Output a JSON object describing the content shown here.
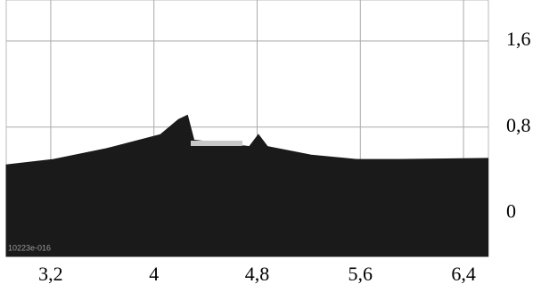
{
  "chart_data": {
    "type": "area",
    "x": [
      2.855,
      3.22,
      3.63,
      4.05,
      4.19,
      4.26,
      4.31,
      4.74,
      4.81,
      4.88,
      5.22,
      5.57,
      5.91,
      6.59
    ],
    "values": [
      0.45,
      0.5,
      0.6,
      0.73,
      0.87,
      0.91,
      0.68,
      0.62,
      0.73,
      0.62,
      0.54,
      0.5,
      0.5,
      0.51
    ],
    "color": "#1a1a1a",
    "xlim": [
      2.855,
      6.593
    ],
    "xticks": [
      {
        "value": 3.2,
        "label": "3,2"
      },
      4,
      {
        "value": 4.8,
        "label": "4,8"
      },
      {
        "value": 5.6,
        "label": "5,6"
      },
      {
        "value": 6.4,
        "label": "6,4"
      }
    ],
    "ylim": [
      -0.4,
      1.98
    ],
    "yticks": [
      {
        "value": 1.6,
        "label": "1,6"
      },
      {
        "value": 0.8,
        "label": "0,8"
      },
      0
    ],
    "grid": true,
    "annotation": "10223e-016"
  }
}
